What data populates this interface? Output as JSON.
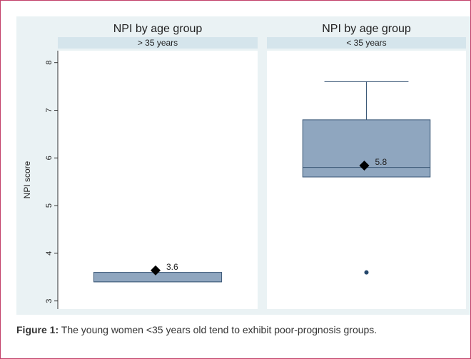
{
  "chart_data": [
    {
      "type": "box",
      "title": "NPI by age group",
      "subtitle": "> 35 years",
      "ylabel": "NPI score",
      "ylim": [
        2.83,
        8.25
      ],
      "yticks": [
        3,
        4,
        5,
        6,
        7,
        8
      ],
      "boxes": [
        {
          "whisker_low": 3.4,
          "q1": 3.4,
          "median": 3.4,
          "q3": 3.6,
          "whisker_high": 3.6,
          "mean": 3.64,
          "mean_label": "3.6",
          "outliers": []
        }
      ],
      "box_color": "#8fa6bf"
    },
    {
      "type": "box",
      "title": "NPI by age group",
      "subtitle": "< 35 years",
      "ylim": [
        2.83,
        8.25
      ],
      "boxes": [
        {
          "whisker_low": 5.6,
          "q1": 5.6,
          "median": 5.8,
          "q3": 6.8,
          "whisker_high": 7.6,
          "mean": 5.84,
          "mean_label": "5.8",
          "outliers": [
            3.6
          ]
        }
      ],
      "box_color": "#8fa6bf"
    }
  ],
  "caption": {
    "label": "Figure 1:",
    "text": "The young women <35 years old tend to exhibit poor-prognosis groups."
  }
}
